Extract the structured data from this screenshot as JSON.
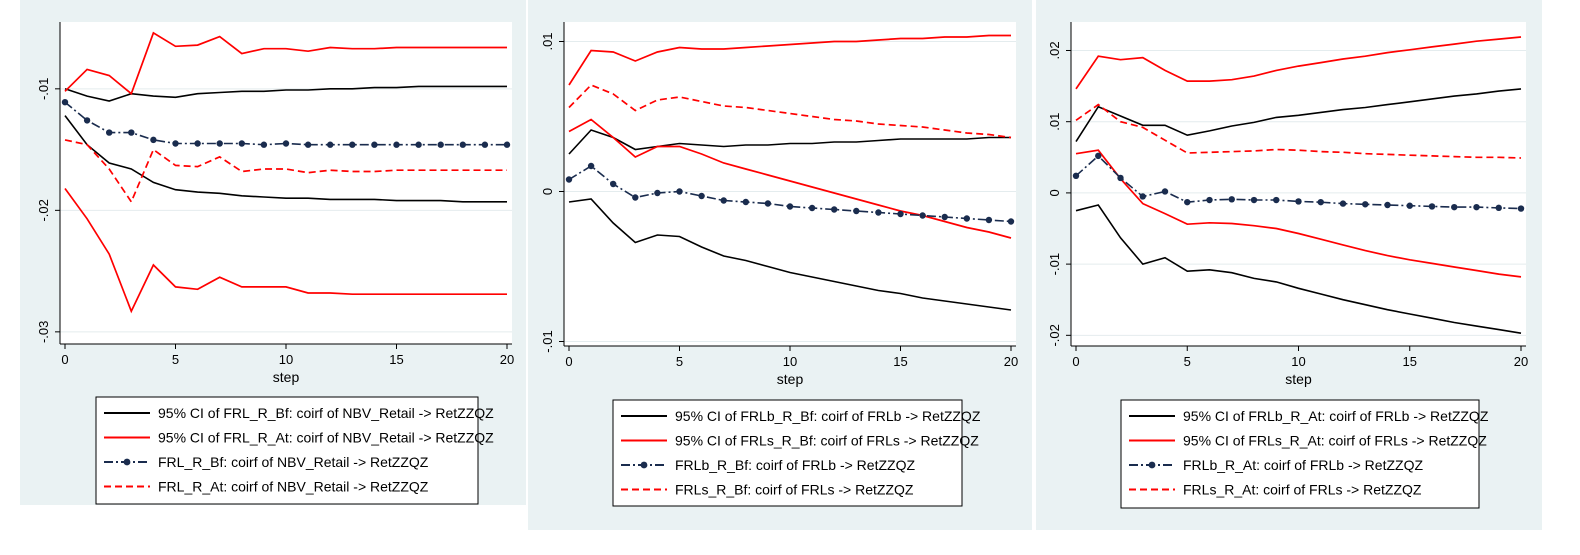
{
  "chart_data": [
    {
      "type": "line",
      "xlabel": "step",
      "xlim": [
        0,
        20
      ],
      "xticks": [
        0,
        5,
        10,
        15,
        20
      ],
      "ylim": [
        -0.031,
        -0.0045
      ],
      "yticks": [
        -0.01,
        -0.02,
        -0.03
      ],
      "ytick_labels": [
        "-.01",
        "-.02",
        "-.03"
      ],
      "colors": {
        "black": "#000000",
        "red": "#ff0000",
        "navy": "#1a2c4e",
        "bg": "#eaf2f3"
      },
      "series": [
        {
          "name": "ci_bf_upper",
          "color": "black",
          "style": "solid",
          "values": [
            -0.01,
            -0.0106,
            -0.011,
            -0.0104,
            -0.0106,
            -0.0107,
            -0.0104,
            -0.0103,
            -0.0102,
            -0.0102,
            -0.0101,
            -0.0101,
            -0.01,
            -0.01,
            -0.0099,
            -0.0099,
            -0.0098,
            -0.0098,
            -0.0098,
            -0.0098,
            -0.0098
          ]
        },
        {
          "name": "ci_bf_lower",
          "color": "black",
          "style": "solid",
          "values": [
            -0.0122,
            -0.0146,
            -0.0161,
            -0.0166,
            -0.0177,
            -0.0183,
            -0.0185,
            -0.0186,
            -0.0188,
            -0.0189,
            -0.019,
            -0.019,
            -0.0191,
            -0.0191,
            -0.0191,
            -0.0192,
            -0.0192,
            -0.0192,
            -0.0193,
            -0.0193,
            -0.0193
          ]
        },
        {
          "name": "ci_at_upper",
          "color": "red",
          "style": "solid",
          "values": [
            -0.0102,
            -0.0084,
            -0.0089,
            -0.0104,
            -0.0054,
            -0.0065,
            -0.0064,
            -0.0057,
            -0.0071,
            -0.0067,
            -0.0067,
            -0.0069,
            -0.0066,
            -0.0067,
            -0.0067,
            -0.0066,
            -0.0066,
            -0.0066,
            -0.0066,
            -0.0066,
            -0.0066
          ]
        },
        {
          "name": "ci_at_lower",
          "color": "red",
          "style": "solid",
          "values": [
            -0.0182,
            -0.0207,
            -0.0236,
            -0.0283,
            -0.0245,
            -0.0263,
            -0.0265,
            -0.0255,
            -0.0263,
            -0.0263,
            -0.0263,
            -0.0268,
            -0.0268,
            -0.0269,
            -0.0269,
            -0.0269,
            -0.0269,
            -0.0269,
            -0.0269,
            -0.0269,
            -0.0269
          ]
        },
        {
          "name": "irf_bf",
          "color": "navy",
          "style": "dashdot",
          "markers": true,
          "values": [
            -0.0111,
            -0.0126,
            -0.0136,
            -0.0136,
            -0.0142,
            -0.0145,
            -0.0145,
            -0.0145,
            -0.0145,
            -0.0146,
            -0.0145,
            -0.0146,
            -0.0146,
            -0.0146,
            -0.0146,
            -0.0146,
            -0.0146,
            -0.0146,
            -0.0146,
            -0.0146,
            -0.0146
          ]
        },
        {
          "name": "irf_at",
          "color": "red",
          "style": "dashed",
          "values": [
            -0.0142,
            -0.0146,
            -0.0166,
            -0.0193,
            -0.015,
            -0.0163,
            -0.0164,
            -0.0156,
            -0.0168,
            -0.0166,
            -0.0166,
            -0.0169,
            -0.0167,
            -0.0168,
            -0.0168,
            -0.0167,
            -0.0167,
            -0.0167,
            -0.0167,
            -0.0167,
            -0.0167
          ]
        }
      ],
      "legend": [
        {
          "color": "black",
          "style": "solid",
          "label": "95% CI of FRL_R_Bf: coirf of NBV_Retail -> RetZZQZ"
        },
        {
          "color": "red",
          "style": "solid",
          "label": "95% CI of FRL_R_At: coirf of NBV_Retail -> RetZZQZ"
        },
        {
          "color": "navy",
          "style": "dashdot",
          "marker": true,
          "label": "FRL_R_Bf: coirf of NBV_Retail -> RetZZQZ"
        },
        {
          "color": "red",
          "style": "dashed",
          "label": "FRL_R_At: coirf of NBV_Retail -> RetZZQZ"
        }
      ]
    },
    {
      "type": "line",
      "xlabel": "step",
      "xlim": [
        0,
        20
      ],
      "xticks": [
        0,
        5,
        10,
        15,
        20
      ],
      "ylim": [
        -0.0103,
        0.0113
      ],
      "yticks": [
        0.01,
        0,
        -0.01
      ],
      "ytick_labels": [
        ".01",
        "0",
        "-.01"
      ],
      "colors": {
        "black": "#000000",
        "red": "#ff0000",
        "navy": "#1a2c4e",
        "bg": "#eaf2f3"
      },
      "series": [
        {
          "name": "ci_frlb_upper",
          "color": "black",
          "style": "solid",
          "values": [
            0.0025,
            0.0041,
            0.0036,
            0.0028,
            0.003,
            0.0032,
            0.0031,
            0.003,
            0.0031,
            0.0031,
            0.0032,
            0.0032,
            0.0033,
            0.0033,
            0.0034,
            0.0035,
            0.0035,
            0.0035,
            0.0035,
            0.0036,
            0.0036
          ]
        },
        {
          "name": "ci_frlb_lower",
          "color": "black",
          "style": "solid",
          "values": [
            -0.0007,
            -0.0005,
            -0.0021,
            -0.0034,
            -0.0029,
            -0.003,
            -0.0037,
            -0.0043,
            -0.0046,
            -0.005,
            -0.0054,
            -0.0057,
            -0.006,
            -0.0063,
            -0.0066,
            -0.0068,
            -0.0071,
            -0.0073,
            -0.0075,
            -0.0077,
            -0.0079
          ]
        },
        {
          "name": "ci_frls_upper",
          "color": "red",
          "style": "solid",
          "values": [
            0.0071,
            0.0094,
            0.0093,
            0.0087,
            0.0093,
            0.0096,
            0.0095,
            0.0095,
            0.0096,
            0.0097,
            0.0098,
            0.0099,
            0.01,
            0.01,
            0.0101,
            0.0102,
            0.0102,
            0.0103,
            0.0103,
            0.0104,
            0.0104
          ]
        },
        {
          "name": "ci_frls_lower",
          "color": "red",
          "style": "solid",
          "values": [
            0.004,
            0.0048,
            0.0036,
            0.0023,
            0.003,
            0.003,
            0.0025,
            0.0019,
            0.0015,
            0.0011,
            0.0007,
            0.0003,
            -0.0001,
            -0.0005,
            -0.0009,
            -0.0013,
            -0.0016,
            -0.002,
            -0.0024,
            -0.0027,
            -0.0031
          ]
        },
        {
          "name": "irf_frlb",
          "color": "navy",
          "style": "dashdot",
          "markers": true,
          "values": [
            0.0008,
            0.0017,
            0.0005,
            -0.0004,
            -0.0001,
            0.0,
            -0.0003,
            -0.0006,
            -0.0007,
            -0.0008,
            -0.001,
            -0.0011,
            -0.0012,
            -0.0013,
            -0.0014,
            -0.0015,
            -0.0016,
            -0.0017,
            -0.0018,
            -0.0019,
            -0.002
          ]
        },
        {
          "name": "irf_frls",
          "color": "red",
          "style": "dashed",
          "values": [
            0.0056,
            0.0071,
            0.0065,
            0.0054,
            0.0061,
            0.0063,
            0.006,
            0.0057,
            0.0056,
            0.0054,
            0.0052,
            0.005,
            0.0048,
            0.0047,
            0.0045,
            0.0044,
            0.0043,
            0.0041,
            0.0039,
            0.0038,
            0.0036
          ]
        }
      ],
      "legend": [
        {
          "color": "black",
          "style": "solid",
          "label": "95% CI of FRLb_R_Bf: coirf of FRLb -> RetZZQZ"
        },
        {
          "color": "red",
          "style": "solid",
          "label": "95% CI of FRLs_R_Bf: coirf of FRLs -> RetZZQZ"
        },
        {
          "color": "navy",
          "style": "dashdot",
          "marker": true,
          "label": "FRLb_R_Bf: coirf of FRLb -> RetZZQZ"
        },
        {
          "color": "red",
          "style": "dashed",
          "label": "FRLs_R_Bf: coirf of FRLs -> RetZZQZ"
        }
      ]
    },
    {
      "type": "line",
      "xlabel": "step",
      "xlim": [
        0,
        20
      ],
      "xticks": [
        0,
        5,
        10,
        15,
        20
      ],
      "ylim": [
        -0.0215,
        0.024
      ],
      "yticks": [
        0.02,
        0.01,
        0,
        -0.01,
        -0.02
      ],
      "ytick_labels": [
        ".02",
        ".01",
        "0",
        "-.01",
        "-.02"
      ],
      "colors": {
        "black": "#000000",
        "red": "#ff0000",
        "navy": "#1a2c4e",
        "bg": "#eaf2f3"
      },
      "series": [
        {
          "name": "ci_frlb_upper",
          "color": "black",
          "style": "solid",
          "values": [
            0.0072,
            0.0121,
            0.0108,
            0.0095,
            0.0095,
            0.0081,
            0.0087,
            0.0094,
            0.0099,
            0.0106,
            0.0109,
            0.0113,
            0.0117,
            0.012,
            0.0124,
            0.0128,
            0.0132,
            0.0136,
            0.0139,
            0.0143,
            0.0146
          ]
        },
        {
          "name": "ci_frlb_lower",
          "color": "black",
          "style": "solid",
          "values": [
            -0.0025,
            -0.0017,
            -0.0063,
            -0.01,
            -0.0091,
            -0.011,
            -0.0108,
            -0.0112,
            -0.012,
            -0.0125,
            -0.0134,
            -0.0142,
            -0.015,
            -0.0157,
            -0.0164,
            -0.017,
            -0.0176,
            -0.0182,
            -0.0187,
            -0.0192,
            -0.0197
          ]
        },
        {
          "name": "ci_frls_upper",
          "color": "red",
          "style": "solid",
          "values": [
            0.0146,
            0.0192,
            0.0187,
            0.019,
            0.0172,
            0.0157,
            0.0157,
            0.0159,
            0.0164,
            0.0172,
            0.0178,
            0.0183,
            0.0188,
            0.0192,
            0.0197,
            0.0201,
            0.0205,
            0.0209,
            0.0213,
            0.0216,
            0.0219
          ]
        },
        {
          "name": "ci_frls_lower",
          "color": "red",
          "style": "solid",
          "values": [
            0.0055,
            0.006,
            0.002,
            -0.0015,
            -0.0029,
            -0.0044,
            -0.0042,
            -0.0043,
            -0.0046,
            -0.005,
            -0.0057,
            -0.0065,
            -0.0073,
            -0.0081,
            -0.0088,
            -0.0094,
            -0.0099,
            -0.0104,
            -0.0109,
            -0.0114,
            -0.0118
          ]
        },
        {
          "name": "irf_frlb",
          "color": "navy",
          "style": "dashdot",
          "markers": true,
          "values": [
            0.0024,
            0.0052,
            0.0021,
            -0.0005,
            0.0002,
            -0.0013,
            -0.001,
            -0.0009,
            -0.001,
            -0.001,
            -0.0012,
            -0.0013,
            -0.0015,
            -0.0016,
            -0.0017,
            -0.0018,
            -0.0019,
            -0.002,
            -0.002,
            -0.0021,
            -0.0022
          ]
        },
        {
          "name": "irf_frls",
          "color": "red",
          "style": "dashed",
          "values": [
            0.0102,
            0.0124,
            0.01,
            0.0092,
            0.0074,
            0.0056,
            0.0057,
            0.0058,
            0.0059,
            0.0061,
            0.006,
            0.0058,
            0.0057,
            0.0055,
            0.0054,
            0.0053,
            0.0052,
            0.0051,
            0.005,
            0.005,
            0.0049
          ]
        }
      ],
      "legend": [
        {
          "color": "black",
          "style": "solid",
          "label": "95% CI of FRLb_R_At: coirf of FRLb -> RetZZQZ"
        },
        {
          "color": "red",
          "style": "solid",
          "label": "95% CI of FRLs_R_At: coirf of FRLs -> RetZZQZ"
        },
        {
          "color": "navy",
          "style": "dashdot",
          "marker": true,
          "label": "FRLb_R_At: coirf of FRLb -> RetZZQZ"
        },
        {
          "color": "red",
          "style": "dashed",
          "label": "FRLs_R_At: coirf of FRLs -> RetZZQZ"
        }
      ]
    }
  ]
}
